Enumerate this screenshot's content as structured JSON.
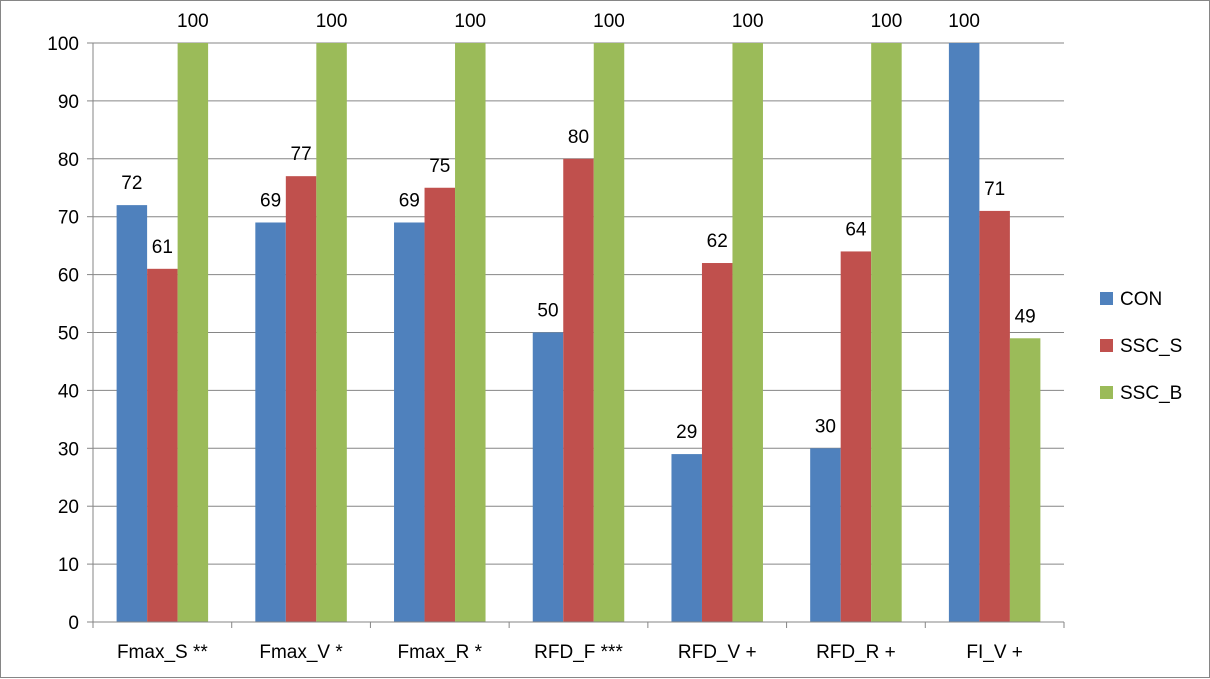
{
  "chart_data": {
    "type": "bar",
    "categories": [
      "Fmax_S **",
      "Fmax_V *",
      "Fmax_R *",
      "RFD_F ***",
      "RFD_V +",
      "RFD_R +",
      "FI_V +"
    ],
    "series": [
      {
        "name": "CON",
        "color": "#4F81BD",
        "values": [
          72,
          69,
          69,
          50,
          29,
          30,
          100
        ]
      },
      {
        "name": "SSC_S",
        "color": "#C0504D",
        "values": [
          61,
          77,
          75,
          80,
          62,
          64,
          71
        ]
      },
      {
        "name": "SSC_B",
        "color": "#9BBB59",
        "values": [
          100,
          100,
          100,
          100,
          100,
          100,
          49
        ]
      }
    ],
    "ylim": [
      0,
      100
    ],
    "yticks": [
      0,
      10,
      20,
      30,
      40,
      50,
      60,
      70,
      80,
      90,
      100
    ],
    "grid": true,
    "legend": "right",
    "data_labels": true
  }
}
